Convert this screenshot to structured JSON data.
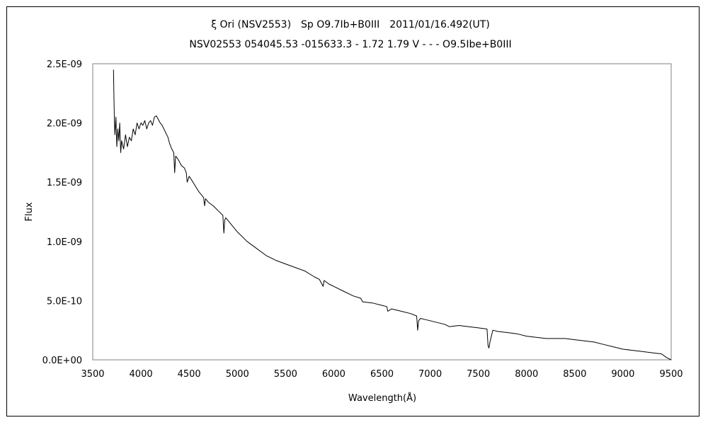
{
  "chart_data": {
    "type": "line",
    "title": "ξ Ori (NSV2553)　Sp O9.7Ib+B0III　2011/01/16.492(UT)",
    "subtitle": "NSV02553 054045.53 -015633.3 - 1.72 1.79 V - - - O9.5Ibe+B0III",
    "xlabel": "Wavelength(Å)",
    "ylabel": "Flux",
    "xlim": [
      3500,
      9500
    ],
    "ylim": [
      0,
      2.5e-09
    ],
    "x_ticks": [
      "3500",
      "4000",
      "4500",
      "5000",
      "5500",
      "6000",
      "6500",
      "7000",
      "7500",
      "8000",
      "8500",
      "9000",
      "9500"
    ],
    "y_ticks": [
      "0.0E+00",
      "5.0E-10",
      "1.0E-09",
      "1.5E-09",
      "2.0E-09",
      "2.5E-09"
    ],
    "grid": false,
    "legend": "none",
    "series": [
      {
        "color": "#000000",
        "x": [
          3715,
          3720,
          3725,
          3730,
          3740,
          3750,
          3760,
          3770,
          3780,
          3790,
          3800,
          3820,
          3840,
          3860,
          3880,
          3900,
          3920,
          3940,
          3960,
          3980,
          4000,
          4020,
          4040,
          4060,
          4080,
          4100,
          4120,
          4140,
          4160,
          4180,
          4200,
          4220,
          4250,
          4280,
          4300,
          4320,
          4340,
          4350,
          4360,
          4380,
          4400,
          4420,
          4450,
          4470,
          4480,
          4500,
          4540,
          4600,
          4650,
          4660,
          4670,
          4700,
          4750,
          4800,
          4850,
          4860,
          4870,
          4880,
          4900,
          4950,
          5000,
          5100,
          5200,
          5300,
          5400,
          5500,
          5600,
          5700,
          5800,
          5850,
          5890,
          5900,
          5950,
          6000,
          6100,
          6200,
          6280,
          6300,
          6400,
          6500,
          6550,
          6560,
          6600,
          6700,
          6800,
          6860,
          6870,
          6880,
          6900,
          6950,
          7000,
          7100,
          7150,
          7200,
          7300,
          7400,
          7500,
          7590,
          7600,
          7610,
          7620,
          7650,
          7700,
          7800,
          7900,
          8000,
          8100,
          8200,
          8300,
          8400,
          8500,
          8600,
          8700,
          8800,
          8900,
          9000,
          9100,
          9200,
          9300,
          9400,
          9450,
          9500
        ],
        "y": [
          2.45e-09,
          2.2e-09,
          2e-09,
          1.9e-09,
          2.05e-09,
          1.8e-09,
          1.95e-09,
          1.85e-09,
          2e-09,
          1.75e-09,
          1.85e-09,
          1.78e-09,
          1.9e-09,
          1.8e-09,
          1.88e-09,
          1.85e-09,
          1.95e-09,
          1.9e-09,
          2e-09,
          1.95e-09,
          2e-09,
          1.98e-09,
          2.02e-09,
          1.95e-09,
          2e-09,
          2.02e-09,
          1.98e-09,
          2.05e-09,
          2.06e-09,
          2.03e-09,
          2e-09,
          1.98e-09,
          1.93e-09,
          1.88e-09,
          1.82e-09,
          1.78e-09,
          1.75e-09,
          1.58e-09,
          1.72e-09,
          1.7e-09,
          1.67e-09,
          1.64e-09,
          1.62e-09,
          1.58e-09,
          1.5e-09,
          1.55e-09,
          1.5e-09,
          1.42e-09,
          1.37e-09,
          1.3e-09,
          1.36e-09,
          1.33e-09,
          1.3e-09,
          1.26e-09,
          1.22e-09,
          1.07e-09,
          1.18e-09,
          1.2e-09,
          1.18e-09,
          1.13e-09,
          1.08e-09,
          1e-09,
          9.4e-10,
          8.8e-10,
          8.4e-10,
          8.1e-10,
          7.8e-10,
          7.5e-10,
          7e-10,
          6.8e-10,
          6.2e-10,
          6.7e-10,
          6.4e-10,
          6.2e-10,
          5.8e-10,
          5.4e-10,
          5.2e-10,
          4.9e-10,
          4.8e-10,
          4.6e-10,
          4.5e-10,
          4.1e-10,
          4.3e-10,
          4.1e-10,
          3.9e-10,
          3.7e-10,
          2.5e-10,
          3.3e-10,
          3.5e-10,
          3.4e-10,
          3.3e-10,
          3.1e-10,
          3e-10,
          2.8e-10,
          2.9e-10,
          2.8e-10,
          2.7e-10,
          2.6e-10,
          1.2e-10,
          1e-10,
          1.5e-10,
          2.5e-10,
          2.4e-10,
          2.3e-10,
          2.2e-10,
          2e-10,
          1.9e-10,
          1.8e-10,
          1.8e-10,
          1.8e-10,
          1.7e-10,
          1.6e-10,
          1.5e-10,
          1.3e-10,
          1.1e-10,
          9e-11,
          8e-11,
          7e-11,
          6e-11,
          5e-11,
          2e-11,
          0.0
        ]
      }
    ]
  }
}
